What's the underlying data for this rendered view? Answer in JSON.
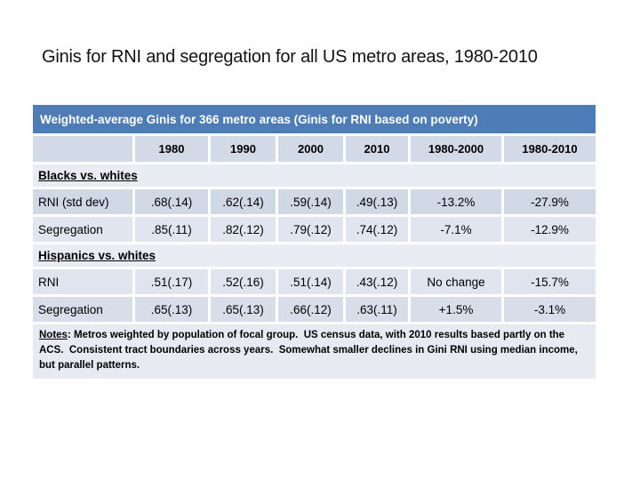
{
  "slide": {
    "title": "Ginis for RNI and segregation for all US metro areas, 1980-2010"
  },
  "table": {
    "header": "Weighted-average Ginis for 366 metro areas (Ginis for RNI based on poverty)",
    "columns": [
      "",
      "1980",
      "1990",
      "2000",
      "2010",
      "1980-2000",
      "1980-2010"
    ],
    "sections": [
      {
        "label": "Blacks vs. whites",
        "rows": [
          {
            "label": "RNI (std dev)",
            "values": [
              ".68(.14)",
              ".62(.14)",
              ".59(.14)",
              ".49(.13)",
              "-13.2%",
              "-27.9%"
            ]
          },
          {
            "label": "Segregation",
            "values": [
              ".85(.11)",
              ".82(.12)",
              ".79(.12)",
              ".74(.12)",
              "-7.1%",
              "-12.9%"
            ]
          }
        ]
      },
      {
        "label": "Hispanics vs. whites",
        "rows": [
          {
            "label": "RNI",
            "values": [
              ".51(.17)",
              ".52(.16)",
              ".51(.14)",
              ".43(.12)",
              "No change",
              "-15.7%"
            ]
          },
          {
            "label": "Segregation",
            "values": [
              ".65(.13)",
              ".65(.13)",
              ".66(.12)",
              ".63(.11)",
              "+1.5%",
              "-3.1%"
            ]
          }
        ]
      }
    ],
    "notes_label": "Notes",
    "notes_text": ": Metros weighted by population of focal group.  US census data, with 2010 results based partly on the ACS.  Consistent tract boundaries across years.  Somewhat smaller declines in Gini RNI using median income, but parallel patterns."
  },
  "colors": {
    "table_header_bg": "#4e7cb7",
    "band_dark": "#d0d8e6",
    "band_light": "#e7eaf1",
    "text": "#000000",
    "header_text": "#ffffff"
  }
}
